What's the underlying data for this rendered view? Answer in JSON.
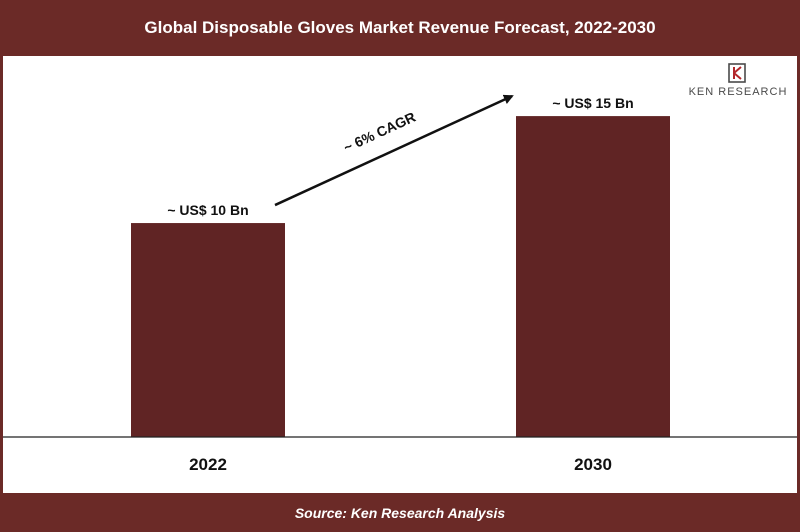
{
  "colors": {
    "brand": "#6b2a27",
    "bar": "#602424",
    "axis": "#222222",
    "text": "#111111"
  },
  "chart_data": {
    "type": "bar",
    "title": "Global Disposable Gloves Market Revenue Forecast, 2022-2030",
    "categories": [
      "2022",
      "2030"
    ],
    "values": [
      10,
      15
    ],
    "value_labels": [
      "~ US$ 10 Bn",
      "~ US$ 15 Bn"
    ],
    "unit": "US$ Bn",
    "annotation": "~ 6% CAGR",
    "ylim": [
      0,
      16.5
    ],
    "grid": false,
    "legend": "none"
  },
  "source": "Source: Ken Research Analysis",
  "logo": {
    "name": "Ken Research logo",
    "text": "KEN RESEARCH"
  }
}
